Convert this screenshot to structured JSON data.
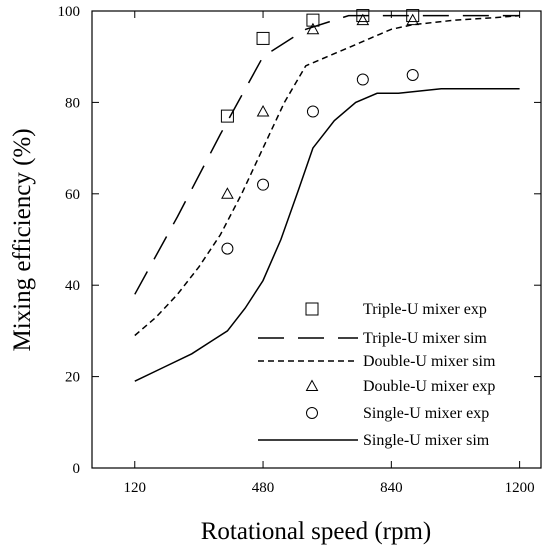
{
  "chart_data": {
    "type": "line",
    "xlabel": "Rotational speed (rpm)",
    "ylabel": "Mixing efficiency (%)",
    "xlim": [
      0,
      1260
    ],
    "ylim": [
      0,
      100
    ],
    "xticks": [
      120,
      480,
      840,
      1200
    ],
    "yticks": [
      0,
      20,
      40,
      60,
      80,
      100
    ],
    "grid": false,
    "legend_position": "bottom-right",
    "series": [
      {
        "name": "Triple-U mixer exp",
        "kind": "markers",
        "marker": "square",
        "x": [
          380,
          480,
          620,
          760,
          900
        ],
        "y": [
          77,
          94,
          98,
          99,
          99
        ]
      },
      {
        "name": "Triple-U mixer sim",
        "kind": "line",
        "dash": "long-dash",
        "x": [
          120,
          240,
          360,
          480,
          600,
          720,
          840,
          960,
          1080,
          1200
        ],
        "y": [
          38,
          55,
          73,
          90,
          96,
          99,
          99,
          99,
          99,
          99
        ]
      },
      {
        "name": "Double-U mixer sim",
        "kind": "line",
        "dash": "short-dash",
        "x": [
          120,
          180,
          240,
          300,
          360,
          420,
          480,
          540,
          600,
          660,
          720,
          780,
          840,
          900,
          960,
          1020,
          1080,
          1140,
          1200
        ],
        "y": [
          29,
          33,
          38,
          44,
          51,
          60,
          70,
          80,
          88,
          90,
          92,
          94,
          96,
          97,
          97.5,
          98,
          98.3,
          98.6,
          99
        ]
      },
      {
        "name": "Double-U mixer exp",
        "kind": "markers",
        "marker": "triangle",
        "x": [
          380,
          480,
          620,
          760,
          900
        ],
        "y": [
          60,
          78,
          96,
          98,
          98
        ]
      },
      {
        "name": "Single-U mixer exp",
        "kind": "markers",
        "marker": "circle",
        "x": [
          380,
          480,
          620,
          760,
          900
        ],
        "y": [
          48,
          62,
          78,
          85,
          86
        ]
      },
      {
        "name": "Single-U mixer sim",
        "kind": "line",
        "dash": "solid",
        "x": [
          120,
          200,
          280,
          340,
          380,
          430,
          480,
          530,
          580,
          620,
          680,
          740,
          800,
          860,
          920,
          980,
          1040,
          1100,
          1160,
          1200
        ],
        "y": [
          19,
          22,
          25,
          28,
          30,
          35,
          41,
          50,
          61,
          70,
          76,
          80,
          82,
          82,
          82.5,
          83,
          83,
          83,
          83,
          83
        ]
      }
    ]
  }
}
